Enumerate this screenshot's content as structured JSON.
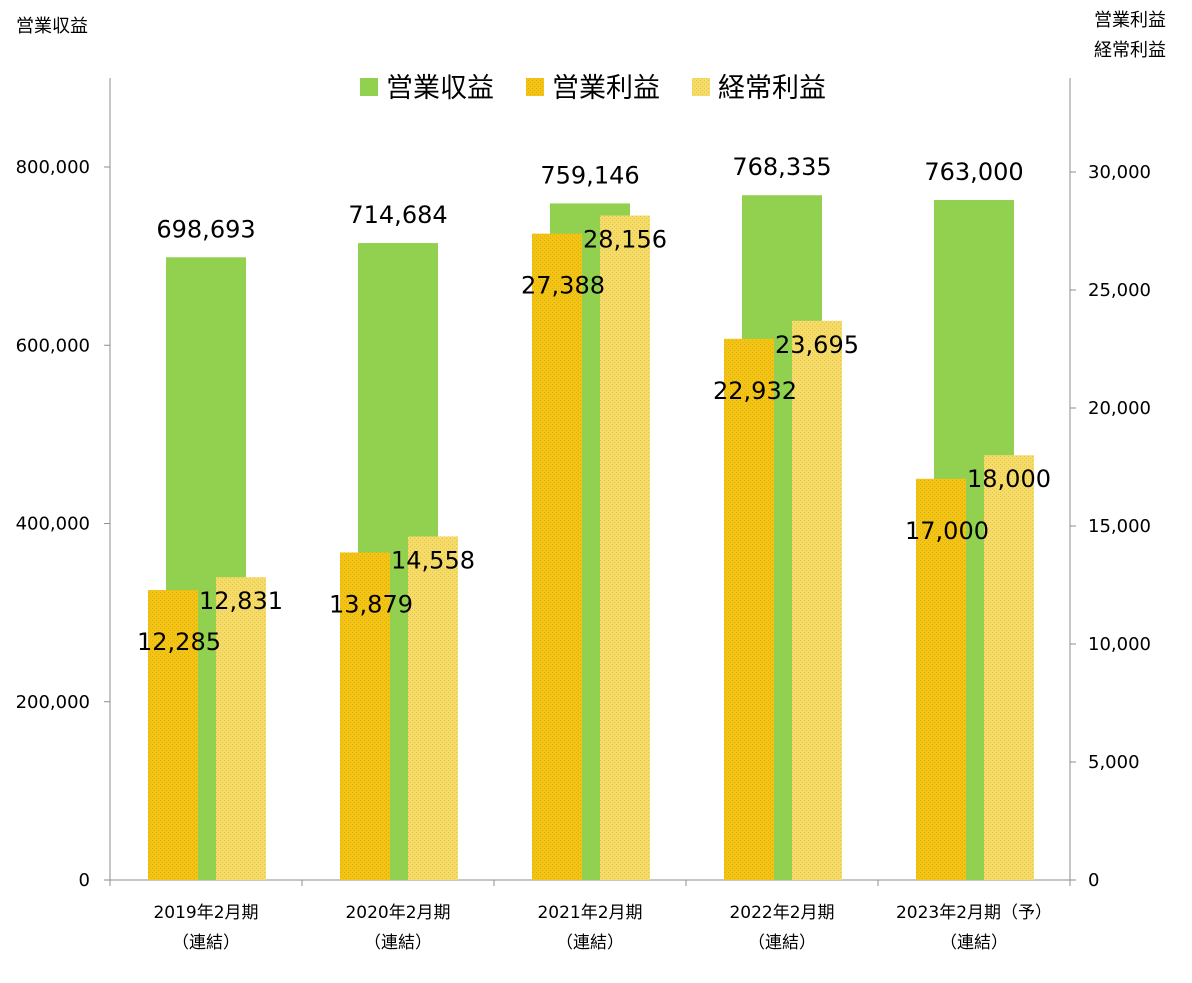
{
  "chart_data": {
    "type": "bar",
    "left_axis_title": "営業収益",
    "right_axis_title_lines": [
      "営業利益",
      "経常利益"
    ],
    "categories": [
      [
        "2019年2月期",
        "（連結）"
      ],
      [
        "2020年2月期",
        "（連結）"
      ],
      [
        "2021年2月期",
        "（連結）"
      ],
      [
        "2022年2月期",
        "（連結）"
      ],
      [
        "2023年2月期（予）",
        "（連結）"
      ]
    ],
    "left_axis": {
      "min": 0,
      "max": 800000,
      "ticks": [
        "0",
        "200,000",
        "400,000",
        "600,000",
        "800,000"
      ],
      "tick_values": [
        0,
        200000,
        400000,
        600000,
        800000
      ]
    },
    "right_axis": {
      "min": 0,
      "max": 30000,
      "ticks": [
        "0",
        "5,000",
        "10,000",
        "15,000",
        "20,000",
        "25,000",
        "30,000"
      ],
      "tick_values": [
        0,
        5000,
        10000,
        15000,
        20000,
        25000,
        30000
      ]
    },
    "legend_position": "top-center",
    "series": [
      {
        "name": "営業収益",
        "axis": "left",
        "color": "#92d050",
        "values": [
          698693,
          714684,
          759146,
          768335,
          763000
        ],
        "labels": [
          "698,693",
          "714,684",
          "759,146",
          "768,335",
          "763,000"
        ]
      },
      {
        "name": "営業利益",
        "axis": "right",
        "color": "#f2c417",
        "values": [
          12285,
          13879,
          27388,
          22932,
          17000
        ],
        "labels": [
          "12,285",
          "13,879",
          "27,388",
          "22,932",
          "17,000"
        ]
      },
      {
        "name": "経常利益",
        "axis": "right",
        "color": "#f5dc6a",
        "values": [
          12831,
          14558,
          28156,
          23695,
          18000
        ],
        "labels": [
          "12,831",
          "14,558",
          "28,156",
          "23,695",
          "18,000"
        ]
      }
    ]
  }
}
